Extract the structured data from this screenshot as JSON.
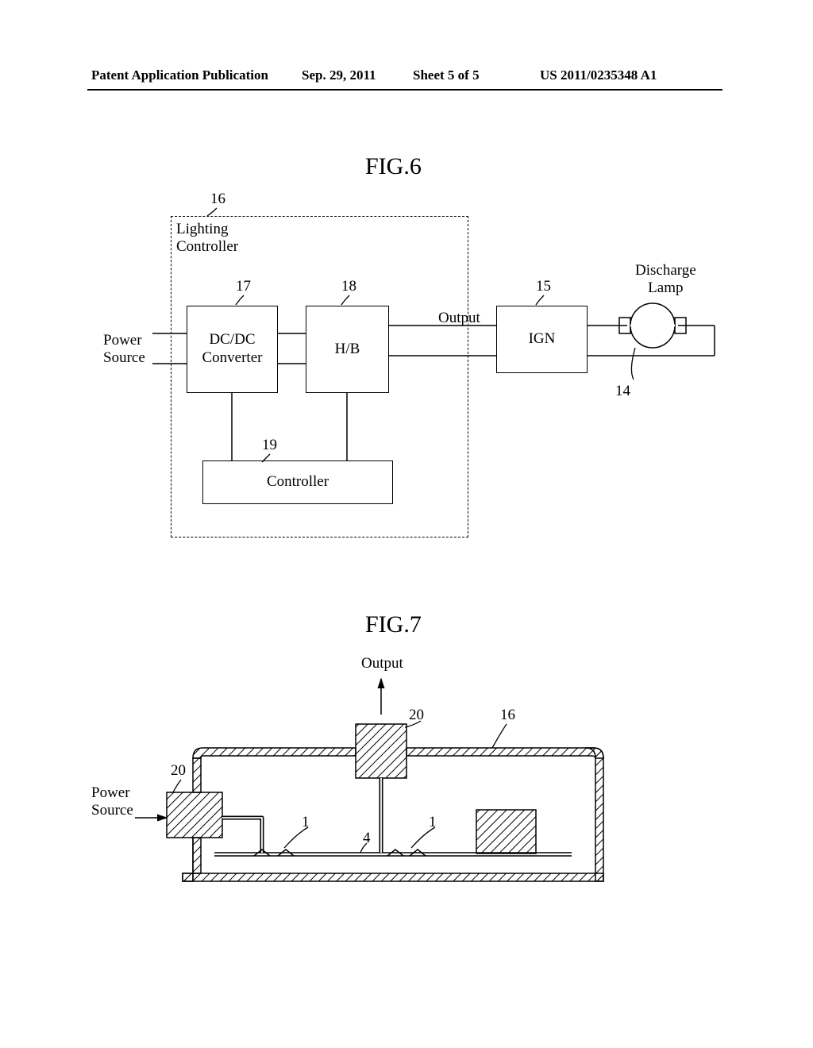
{
  "header": {
    "left": "Patent Application Publication",
    "date": "Sep. 29, 2011",
    "sheet": "Sheet 5 of 5",
    "pubno": "US 2011/0235348 A1"
  },
  "fig6": {
    "title": "FIG.6",
    "labels": {
      "controller_box": "Lighting\nController",
      "power_source": "Power\nSource",
      "dcdc": "DC/DC\nConverter",
      "hb": "H/B",
      "output": "Output",
      "ign": "IGN",
      "discharge_lamp": "Discharge\nLamp",
      "controller": "Controller"
    },
    "refs": {
      "r16": "16",
      "r17": "17",
      "r18": "18",
      "r15": "15",
      "r14": "14",
      "r19": "19"
    },
    "colors": {
      "stroke": "#000000",
      "bg": "#ffffff"
    }
  },
  "fig7": {
    "title": "FIG.7",
    "labels": {
      "output": "Output",
      "power_source": "Power\nSource"
    },
    "refs": {
      "r20a": "20",
      "r20b": "20",
      "r16": "16",
      "r1a": "1",
      "r1b": "1",
      "r4": "4"
    },
    "colors": {
      "stroke": "#000000",
      "hatch": "#000000",
      "bg": "#ffffff"
    }
  }
}
